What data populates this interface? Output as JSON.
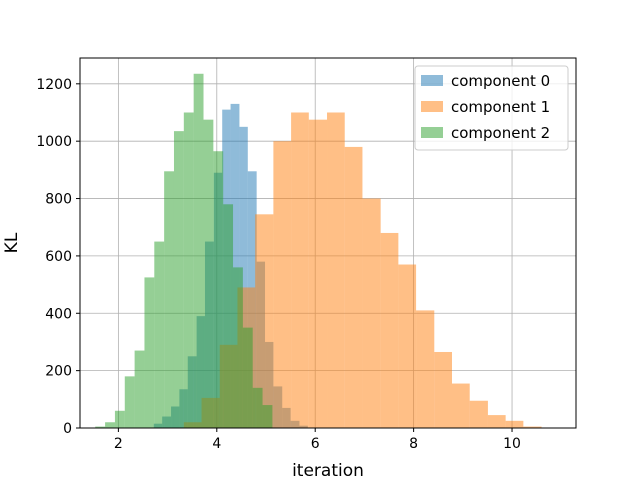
{
  "chart_data": {
    "type": "bar",
    "subtype": "histogram-overlay",
    "xlabel": "iteration",
    "ylabel": "KL",
    "xlim": [
      1.22,
      11.3
    ],
    "ylim": [
      0,
      1290
    ],
    "xticks": [
      2,
      4,
      6,
      8,
      10
    ],
    "yticks": [
      0,
      200,
      400,
      600,
      800,
      1000,
      1200
    ],
    "grid": true,
    "legend_position": "top-right",
    "series": [
      {
        "name": "component 0",
        "color": "#1f77b4",
        "opacity": 0.5,
        "bin_edges": [
          2.72,
          2.89,
          3.07,
          3.24,
          3.41,
          3.59,
          3.76,
          3.94,
          4.11,
          4.28,
          4.46,
          4.63,
          4.81,
          4.98,
          5.15,
          5.33,
          5.5,
          5.68,
          5.85
        ],
        "counts": [
          15,
          40,
          75,
          135,
          250,
          390,
          650,
          890,
          1110,
          1130,
          1050,
          895,
          580,
          300,
          145,
          70,
          25,
          8
        ]
      },
      {
        "name": "component 1",
        "color": "#ff7f0e",
        "opacity": 0.5,
        "bin_edges": [
          3.33,
          3.69,
          4.06,
          4.42,
          4.78,
          5.15,
          5.51,
          5.87,
          6.24,
          6.6,
          6.96,
          7.33,
          7.69,
          8.05,
          8.42,
          8.78,
          9.14,
          9.51,
          9.87,
          10.23,
          10.6
        ],
        "counts": [
          20,
          105,
          290,
          490,
          745,
          1000,
          1100,
          1075,
          1100,
          980,
          800,
          680,
          570,
          410,
          265,
          155,
          95,
          45,
          25,
          5
        ]
      },
      {
        "name": "component 2",
        "color": "#2ca02c",
        "opacity": 0.5,
        "bin_edges": [
          1.53,
          1.73,
          1.93,
          2.13,
          2.33,
          2.53,
          2.73,
          2.93,
          3.13,
          3.33,
          3.53,
          3.73,
          3.93,
          4.13,
          4.33,
          4.53,
          4.73,
          4.93,
          5.13
        ],
        "counts": [
          5,
          20,
          60,
          180,
          270,
          525,
          650,
          895,
          1035,
          1100,
          1235,
          1075,
          965,
          780,
          560,
          350,
          140,
          80
        ]
      }
    ]
  }
}
